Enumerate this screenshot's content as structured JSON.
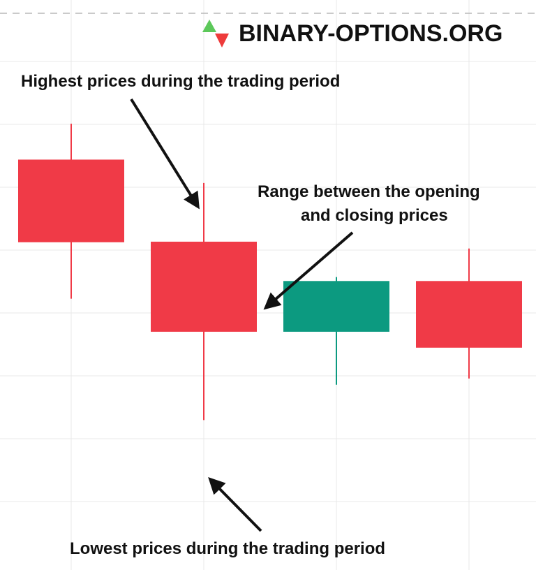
{
  "brand": {
    "name": "BINARY-OPTIONS.ORG",
    "logo_icon": "up-down-triangles-icon",
    "up_color": "#5cc85a",
    "down_color": "#ee3b3b"
  },
  "annotations": {
    "high": "Highest prices during the trading period",
    "range_line1": "Range between the opening",
    "range_line2": "and closing prices",
    "low": "Lowest prices during the trading period"
  },
  "colors": {
    "bearish": "#f03a47",
    "bullish": "#0c9a80",
    "grid": "#e9e9e9",
    "arrow": "#111111"
  },
  "chart_data": {
    "type": "candlestick",
    "grid": true,
    "ylim": [
      0,
      100
    ],
    "candles": [
      {
        "open": 72.0,
        "close": 57.5,
        "high": 78.3,
        "low": 47.6,
        "direction": "down"
      },
      {
        "open": 57.6,
        "close": 41.8,
        "high": 67.9,
        "low": 26.3,
        "direction": "down"
      },
      {
        "open": 41.8,
        "close": 50.7,
        "high": 51.4,
        "low": 32.5,
        "direction": "up"
      },
      {
        "open": 50.7,
        "close": 39.0,
        "high": 56.4,
        "low": 33.6,
        "direction": "down"
      }
    ]
  }
}
